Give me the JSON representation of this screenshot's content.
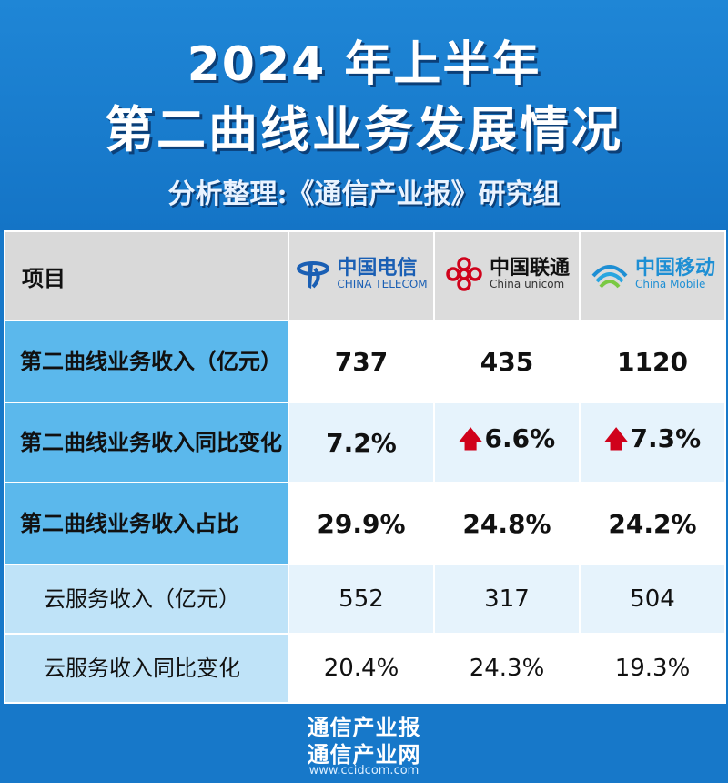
{
  "header": {
    "title_line1": "2024 年上半年",
    "title_line2": "第二曲线业务发展情况",
    "subtitle": "分析整理:《通信产业报》研究组"
  },
  "table": {
    "corner_label": "项目",
    "operators": [
      {
        "cn": "中国电信",
        "en": "CHINA TELECOM",
        "color": "#1a5fb4"
      },
      {
        "cn": "中国联通",
        "en": "China unicom",
        "color": "#d0021b"
      },
      {
        "cn": "中国移动",
        "en": "China Mobile",
        "color": "#1e8fd4"
      }
    ],
    "rows": [
      {
        "label": "第二曲线业务收入（亿元）",
        "values": [
          "737",
          "435",
          "1120"
        ]
      },
      {
        "label": "第二曲线业务收入同比变化",
        "values": [
          "7.2%",
          "6.6%",
          "7.3%"
        ]
      },
      {
        "label": "第二曲线业务收入占比",
        "values": [
          "29.9%",
          "24.8%",
          "24.2%"
        ]
      },
      {
        "label": "云服务收入（亿元）",
        "values": [
          "552",
          "317",
          "504"
        ]
      },
      {
        "label": "云服务收入同比变化",
        "values": [
          "20.4%",
          "24.3%",
          "19.3%"
        ]
      }
    ],
    "arrow_color": "#d0021b"
  },
  "footer": {
    "line1": "通信产业报",
    "line2": "通信产业网",
    "url": "www.ccidcom.com"
  }
}
